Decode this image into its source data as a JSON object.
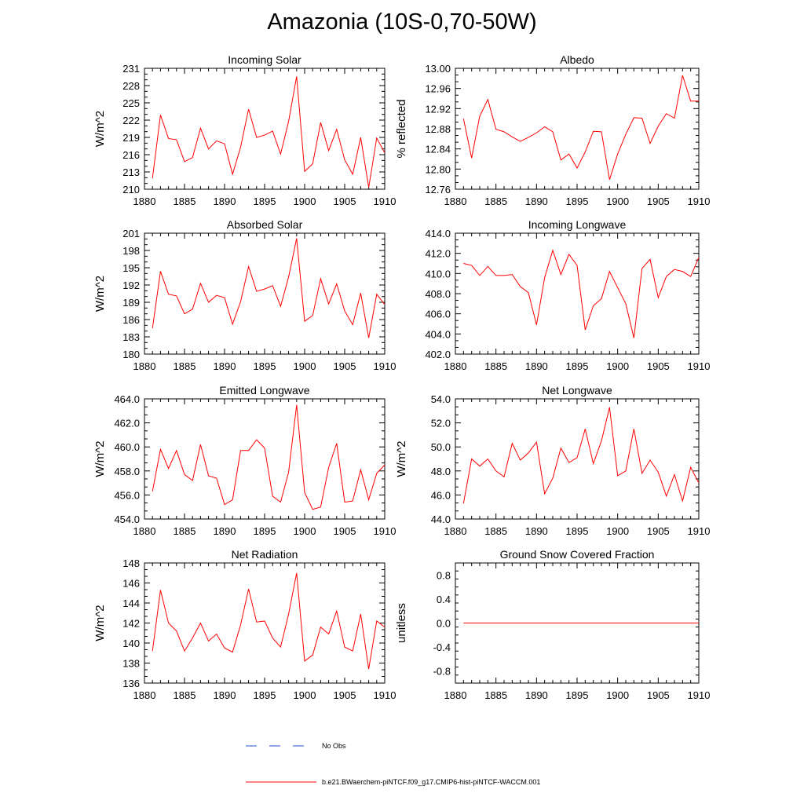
{
  "title": "Amazonia (10S-0,70-50W)",
  "colors": {
    "model": "#ff0000",
    "obs": "#2a4bd7",
    "axis": "#000000"
  },
  "legend": {
    "obs_label": "No Obs",
    "model_label": "b.e21.BWaerchem-piNTCF.f09_g17.CMIP6-hist-piNTCF-WACCM.001"
  },
  "chart_data": [
    {
      "type": "line",
      "title": "Incoming Solar",
      "ylabel": "W/m^2",
      "xlim": [
        1880,
        1910
      ],
      "ylim": [
        210,
        231
      ],
      "xticks": [
        1880,
        1885,
        1890,
        1895,
        1900,
        1905,
        1910
      ],
      "xtick_labels": [
        "1880",
        "1885",
        "1890",
        "1895",
        "1900",
        "1905",
        "1910"
      ],
      "yticks": [
        210,
        213,
        216,
        219,
        222,
        225,
        228,
        231
      ],
      "ytick_labels": [
        "210",
        "213",
        "216",
        "219",
        "222",
        "225",
        "228",
        "231"
      ],
      "x": [
        1881,
        1882,
        1883,
        1884,
        1885,
        1886,
        1887,
        1888,
        1889,
        1890,
        1891,
        1892,
        1893,
        1894,
        1895,
        1896,
        1897,
        1898,
        1899,
        1900,
        1901,
        1902,
        1903,
        1904,
        1905,
        1906,
        1907,
        1908,
        1909,
        1910
      ],
      "series": [
        {
          "values": [
            211.9,
            222.9,
            218.8,
            218.6,
            214.8,
            215.5,
            220.6,
            217.0,
            218.4,
            217.9,
            212.6,
            217.3,
            223.9,
            219.0,
            219.4,
            220.1,
            216.1,
            221.8,
            229.6,
            213.1,
            214.4,
            221.6,
            216.7,
            220.4,
            215.1,
            212.6,
            219.0,
            210.3,
            218.9,
            216.3
          ]
        }
      ]
    },
    {
      "type": "line",
      "title": "Albedo",
      "ylabel": "% reflected",
      "xlim": [
        1880,
        1910
      ],
      "ylim": [
        12.76,
        13.0
      ],
      "xticks": [
        1880,
        1885,
        1890,
        1895,
        1900,
        1905,
        1910
      ],
      "xtick_labels": [
        "1880",
        "1885",
        "1890",
        "1895",
        "1900",
        "1905",
        "1910"
      ],
      "yticks": [
        12.76,
        12.8,
        12.84,
        12.88,
        12.92,
        12.96,
        13.0
      ],
      "ytick_labels": [
        "12.76",
        "12.80",
        "12.84",
        "12.88",
        "12.92",
        "12.96",
        "13.00"
      ],
      "x": [
        1881,
        1882,
        1883,
        1884,
        1885,
        1886,
        1887,
        1888,
        1889,
        1890,
        1891,
        1892,
        1893,
        1894,
        1895,
        1896,
        1897,
        1898,
        1899,
        1900,
        1901,
        1902,
        1903,
        1904,
        1905,
        1906,
        1907,
        1908,
        1909,
        1910
      ],
      "series": [
        {
          "values": [
            12.9,
            12.822,
            12.905,
            12.938,
            12.879,
            12.874,
            12.864,
            12.855,
            12.863,
            12.872,
            12.884,
            12.874,
            12.818,
            12.83,
            12.802,
            12.834,
            12.875,
            12.874,
            12.779,
            12.83,
            12.869,
            12.902,
            12.901,
            12.851,
            12.885,
            12.91,
            12.901,
            12.986,
            12.935,
            12.935
          ]
        }
      ]
    },
    {
      "type": "line",
      "title": "Absorbed Solar",
      "ylabel": "W/m^2",
      "xlim": [
        1880,
        1910
      ],
      "ylim": [
        180,
        201
      ],
      "xticks": [
        1880,
        1885,
        1890,
        1895,
        1900,
        1905,
        1910
      ],
      "xtick_labels": [
        "1880",
        "1885",
        "1890",
        "1895",
        "1900",
        "1905",
        "1910"
      ],
      "yticks": [
        180,
        183,
        186,
        189,
        192,
        195,
        198,
        201
      ],
      "ytick_labels": [
        "180",
        "183",
        "186",
        "189",
        "192",
        "195",
        "198",
        "201"
      ],
      "x": [
        1881,
        1882,
        1883,
        1884,
        1885,
        1886,
        1887,
        1888,
        1889,
        1890,
        1891,
        1892,
        1893,
        1894,
        1895,
        1896,
        1897,
        1898,
        1899,
        1900,
        1901,
        1902,
        1903,
        1904,
        1905,
        1906,
        1907,
        1908,
        1909,
        1910
      ],
      "series": [
        {
          "values": [
            184.5,
            194.4,
            190.4,
            190.1,
            187.0,
            187.8,
            192.3,
            189.0,
            190.2,
            189.8,
            185.2,
            189.1,
            195.2,
            190.9,
            191.3,
            191.9,
            188.3,
            193.4,
            200.1,
            185.7,
            186.7,
            193.1,
            188.7,
            192.2,
            187.5,
            185.1,
            190.6,
            182.8,
            190.4,
            188.6
          ]
        }
      ]
    },
    {
      "type": "line",
      "title": "Incoming Longwave",
      "ylabel": "",
      "xlim": [
        1880,
        1910
      ],
      "ylim": [
        402.0,
        414.0
      ],
      "xticks": [
        1880,
        1885,
        1890,
        1895,
        1900,
        1905,
        1910
      ],
      "xtick_labels": [
        "1880",
        "1885",
        "1890",
        "1895",
        "1900",
        "1905",
        "1910"
      ],
      "yticks": [
        402,
        404,
        406,
        408,
        410,
        412,
        414
      ],
      "ytick_labels": [
        "402.0",
        "404.0",
        "406.0",
        "408.0",
        "410.0",
        "412.0",
        "414.0"
      ],
      "x": [
        1881,
        1882,
        1883,
        1884,
        1885,
        1886,
        1887,
        1888,
        1889,
        1890,
        1891,
        1892,
        1893,
        1894,
        1895,
        1896,
        1897,
        1898,
        1899,
        1900,
        1901,
        1902,
        1903,
        1904,
        1905,
        1906,
        1907,
        1908,
        1909,
        1910
      ],
      "series": [
        {
          "values": [
            411.0,
            410.8,
            409.8,
            410.7,
            409.8,
            409.8,
            409.9,
            408.7,
            408.1,
            404.9,
            409.6,
            412.3,
            409.9,
            411.9,
            410.8,
            404.4,
            406.8,
            407.5,
            410.2,
            408.6,
            407.0,
            403.6,
            410.5,
            411.4,
            407.6,
            409.7,
            410.4,
            410.2,
            409.7,
            411.6
          ]
        }
      ]
    },
    {
      "type": "line",
      "title": "Emitted Longwave",
      "ylabel": "W/m^2",
      "xlim": [
        1880,
        1910
      ],
      "ylim": [
        454.0,
        464.0
      ],
      "xticks": [
        1880,
        1885,
        1890,
        1895,
        1900,
        1905,
        1910
      ],
      "xtick_labels": [
        "1880",
        "1885",
        "1890",
        "1895",
        "1900",
        "1905",
        "1910"
      ],
      "yticks": [
        454,
        456,
        458,
        460,
        462,
        464
      ],
      "ytick_labels": [
        "454.0",
        "456.0",
        "458.0",
        "460.0",
        "462.0",
        "464.0"
      ],
      "x": [
        1881,
        1882,
        1883,
        1884,
        1885,
        1886,
        1887,
        1888,
        1889,
        1890,
        1891,
        1892,
        1893,
        1894,
        1895,
        1896,
        1897,
        1898,
        1899,
        1900,
        1901,
        1902,
        1903,
        1904,
        1905,
        1906,
        1907,
        1908,
        1909,
        1910
      ],
      "series": [
        {
          "values": [
            456.3,
            459.8,
            458.2,
            459.7,
            457.7,
            457.2,
            460.2,
            457.6,
            457.4,
            455.2,
            455.6,
            459.7,
            459.7,
            460.6,
            459.9,
            455.9,
            455.4,
            457.9,
            463.5,
            456.2,
            454.8,
            455.0,
            458.3,
            460.3,
            455.4,
            455.5,
            458.1,
            455.6,
            457.8,
            458.5
          ]
        }
      ]
    },
    {
      "type": "line",
      "title": "Net Longwave",
      "ylabel": "W/m^2",
      "xlim": [
        1880,
        1910
      ],
      "ylim": [
        44.0,
        54.0
      ],
      "xticks": [
        1880,
        1885,
        1890,
        1895,
        1900,
        1905,
        1910
      ],
      "xtick_labels": [
        "1880",
        "1885",
        "1890",
        "1895",
        "1900",
        "1905",
        "1910"
      ],
      "yticks": [
        44,
        46,
        48,
        50,
        52,
        54
      ],
      "ytick_labels": [
        "44.0",
        "46.0",
        "48.0",
        "50.0",
        "52.0",
        "54.0"
      ],
      "x": [
        1881,
        1882,
        1883,
        1884,
        1885,
        1886,
        1887,
        1888,
        1889,
        1890,
        1891,
        1892,
        1893,
        1894,
        1895,
        1896,
        1897,
        1898,
        1899,
        1900,
        1901,
        1902,
        1903,
        1904,
        1905,
        1906,
        1907,
        1908,
        1909,
        1910
      ],
      "series": [
        {
          "values": [
            45.3,
            49.0,
            48.4,
            49.0,
            48.0,
            47.5,
            50.3,
            48.9,
            49.5,
            50.4,
            46.1,
            47.4,
            49.9,
            48.7,
            49.1,
            51.5,
            48.6,
            50.5,
            53.3,
            47.6,
            48.0,
            51.5,
            47.8,
            48.9,
            47.9,
            45.9,
            47.7,
            45.5,
            48.3,
            47.0
          ]
        }
      ]
    },
    {
      "type": "line",
      "title": "Net Radiation",
      "ylabel": "W/m^2",
      "xlim": [
        1880,
        1910
      ],
      "ylim": [
        136,
        148
      ],
      "xticks": [
        1880,
        1885,
        1890,
        1895,
        1900,
        1905,
        1910
      ],
      "xtick_labels": [
        "1880",
        "1885",
        "1890",
        "1895",
        "1900",
        "1905",
        "1910"
      ],
      "yticks": [
        136,
        138,
        140,
        142,
        144,
        146,
        148
      ],
      "ytick_labels": [
        "136",
        "138",
        "140",
        "142",
        "144",
        "146",
        "148"
      ],
      "x": [
        1881,
        1882,
        1883,
        1884,
        1885,
        1886,
        1887,
        1888,
        1889,
        1890,
        1891,
        1892,
        1893,
        1894,
        1895,
        1896,
        1897,
        1898,
        1899,
        1900,
        1901,
        1902,
        1903,
        1904,
        1905,
        1906,
        1907,
        1908,
        1909,
        1910
      ],
      "series": [
        {
          "values": [
            139.2,
            145.3,
            142.0,
            141.2,
            139.2,
            140.5,
            142.0,
            140.2,
            140.9,
            139.5,
            139.1,
            141.8,
            145.4,
            142.1,
            142.2,
            140.5,
            139.6,
            142.9,
            147.0,
            138.2,
            138.8,
            141.6,
            140.9,
            143.2,
            139.6,
            139.2,
            142.9,
            137.4,
            142.2,
            141.6
          ]
        }
      ]
    },
    {
      "type": "line",
      "title": "Ground Snow Covered Fraction",
      "ylabel": "unitless",
      "xlim": [
        1880,
        1910
      ],
      "ylim": [
        -1.0,
        1.0
      ],
      "xticks": [
        1880,
        1885,
        1890,
        1895,
        1900,
        1905,
        1910
      ],
      "xtick_labels": [
        "1880",
        "1885",
        "1890",
        "1895",
        "1900",
        "1905",
        "1910"
      ],
      "yticks": [
        -0.8,
        -0.4,
        0.0,
        0.4,
        0.8
      ],
      "ytick_labels": [
        "-0.8",
        "-0.4",
        "0.0",
        "0.4",
        "0.8"
      ],
      "x": [
        1881,
        1882,
        1883,
        1884,
        1885,
        1886,
        1887,
        1888,
        1889,
        1890,
        1891,
        1892,
        1893,
        1894,
        1895,
        1896,
        1897,
        1898,
        1899,
        1900,
        1901,
        1902,
        1903,
        1904,
        1905,
        1906,
        1907,
        1908,
        1909,
        1910
      ],
      "series": [
        {
          "values": [
            0,
            0,
            0,
            0,
            0,
            0,
            0,
            0,
            0,
            0,
            0,
            0,
            0,
            0,
            0,
            0,
            0,
            0,
            0,
            0,
            0,
            0,
            0,
            0,
            0,
            0,
            0,
            0,
            0,
            0
          ]
        }
      ]
    }
  ]
}
